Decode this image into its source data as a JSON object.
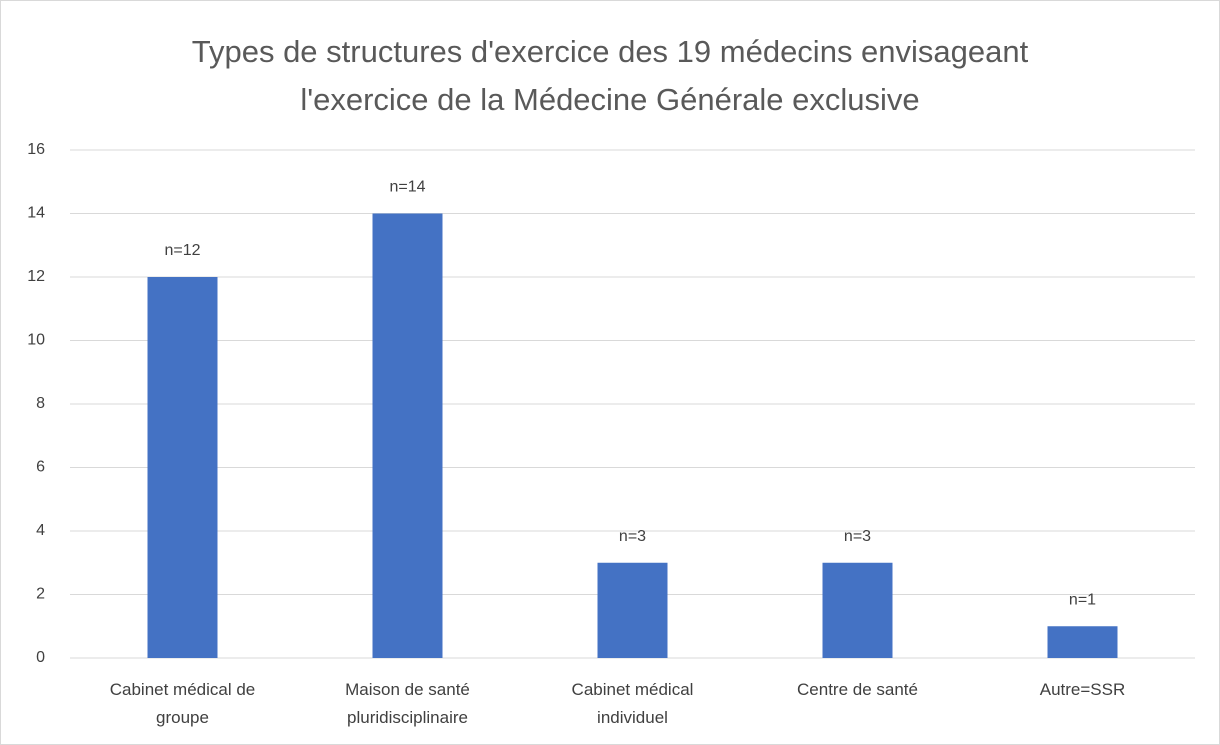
{
  "chart_data": {
    "type": "bar",
    "title": "Types de structures d'exercice des 19 médecins envisageant l'exercice de la Médecine Générale exclusive",
    "categories": [
      "Cabinet médical de groupe",
      "Maison de santé pluridisciplinaire",
      "Cabinet médical individuel",
      "Centre de santé",
      "Autre=SSR"
    ],
    "values": [
      12,
      14,
      3,
      3,
      1
    ],
    "value_labels": [
      "n=12",
      "n=14",
      "n=3",
      "n=3",
      "n=1"
    ],
    "color": "#4472c4",
    "ylim": [
      0,
      16
    ],
    "yticks": [
      0,
      2,
      4,
      6,
      8,
      10,
      12,
      14,
      16
    ],
    "grid": true
  }
}
